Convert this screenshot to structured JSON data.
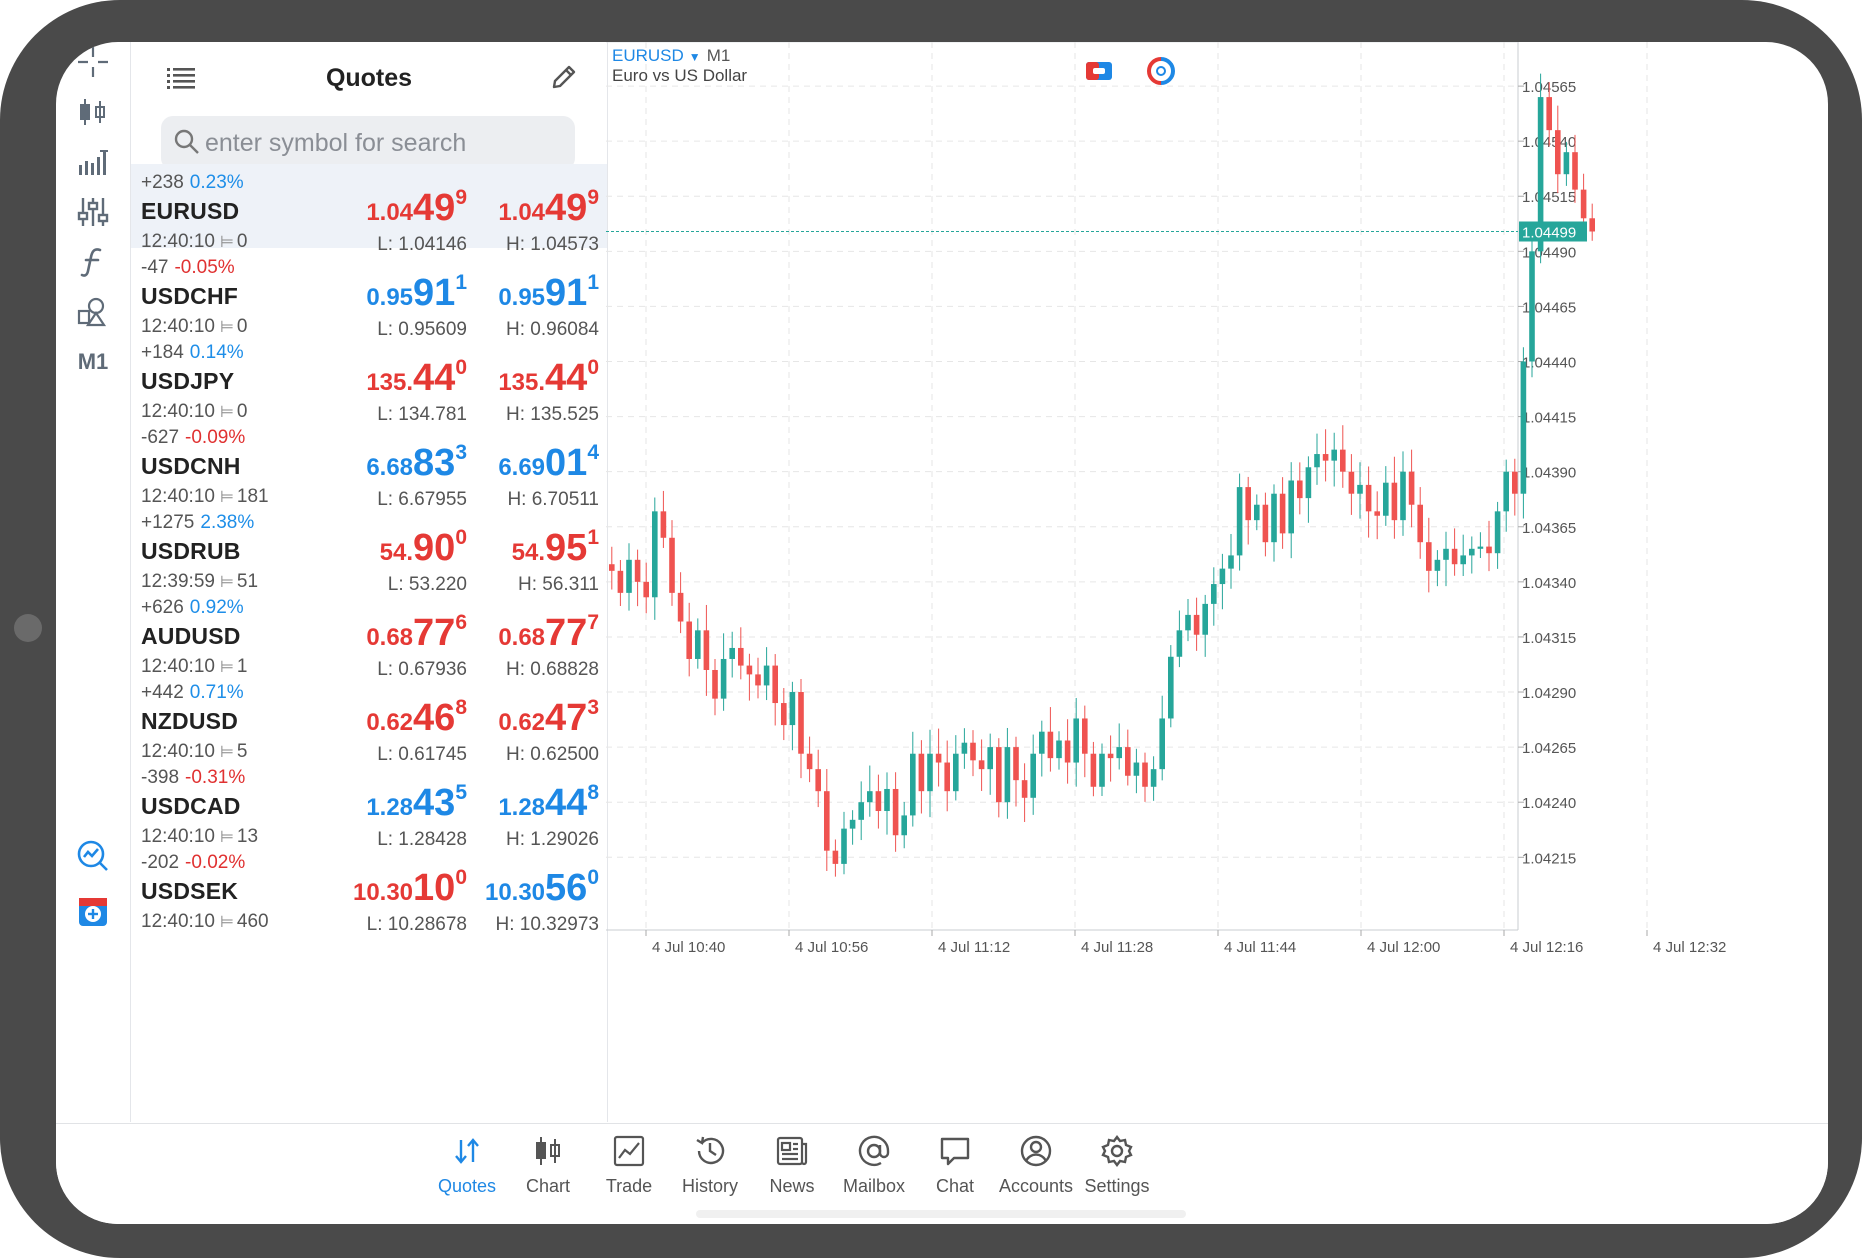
{
  "quotes_panel": {
    "title": "Quotes",
    "search_placeholder": "enter symbol for search",
    "rows": [
      {
        "symbol": "EURUSD",
        "change": "+238",
        "pct": "0.23%",
        "dir": "pos",
        "time": "12:40:10",
        "spread": "0",
        "bid": {
          "a": "1.04",
          "b": "49",
          "c": "9",
          "color": "red"
        },
        "ask": {
          "a": "1.04",
          "b": "49",
          "c": "9",
          "color": "red"
        },
        "low": "L: 1.04146",
        "high": "H: 1.04573"
      },
      {
        "symbol": "USDCHF",
        "change": "-47",
        "pct": "-0.05%",
        "dir": "neg",
        "time": "12:40:10",
        "spread": "0",
        "bid": {
          "a": "0.95",
          "b": "91",
          "c": "1",
          "color": "blue"
        },
        "ask": {
          "a": "0.95",
          "b": "91",
          "c": "1",
          "color": "blue"
        },
        "low": "L: 0.95609",
        "high": "H: 0.96084"
      },
      {
        "symbol": "USDJPY",
        "change": "+184",
        "pct": "0.14%",
        "dir": "pos",
        "time": "12:40:10",
        "spread": "0",
        "bid": {
          "a": "135.",
          "b": "44",
          "c": "0",
          "color": "red"
        },
        "ask": {
          "a": "135.",
          "b": "44",
          "c": "0",
          "color": "red"
        },
        "low": "L: 134.781",
        "high": "H: 135.525"
      },
      {
        "symbol": "USDCNH",
        "change": "-627",
        "pct": "-0.09%",
        "dir": "neg",
        "time": "12:40:10",
        "spread": "181",
        "bid": {
          "a": "6.68",
          "b": "83",
          "c": "3",
          "color": "blue"
        },
        "ask": {
          "a": "6.69",
          "b": "01",
          "c": "4",
          "color": "blue"
        },
        "low": "L: 6.67955",
        "high": "H: 6.70511"
      },
      {
        "symbol": "USDRUB",
        "change": "+1275",
        "pct": "2.38%",
        "dir": "pos",
        "time": "12:39:59",
        "spread": "51",
        "bid": {
          "a": "54.",
          "b": "90",
          "c": "0",
          "color": "red"
        },
        "ask": {
          "a": "54.",
          "b": "95",
          "c": "1",
          "color": "red"
        },
        "low": "L: 53.220",
        "high": "H: 56.311"
      },
      {
        "symbol": "AUDUSD",
        "change": "+626",
        "pct": "0.92%",
        "dir": "pos",
        "time": "12:40:10",
        "spread": "1",
        "bid": {
          "a": "0.68",
          "b": "77",
          "c": "6",
          "color": "red"
        },
        "ask": {
          "a": "0.68",
          "b": "77",
          "c": "7",
          "color": "red"
        },
        "low": "L: 0.67936",
        "high": "H: 0.68828"
      },
      {
        "symbol": "NZDUSD",
        "change": "+442",
        "pct": "0.71%",
        "dir": "pos",
        "time": "12:40:10",
        "spread": "5",
        "bid": {
          "a": "0.62",
          "b": "46",
          "c": "8",
          "color": "red"
        },
        "ask": {
          "a": "0.62",
          "b": "47",
          "c": "3",
          "color": "red"
        },
        "low": "L: 0.61745",
        "high": "H: 0.62500"
      },
      {
        "symbol": "USDCAD",
        "change": "-398",
        "pct": "-0.31%",
        "dir": "neg",
        "time": "12:40:10",
        "spread": "13",
        "bid": {
          "a": "1.28",
          "b": "43",
          "c": "5",
          "color": "blue"
        },
        "ask": {
          "a": "1.28",
          "b": "44",
          "c": "8",
          "color": "blue"
        },
        "low": "L: 1.28428",
        "high": "H: 1.29026"
      },
      {
        "symbol": "USDSEK",
        "change": "-202",
        "pct": "-0.02%",
        "dir": "neg",
        "time": "12:40:10",
        "spread": "460",
        "bid": {
          "a": "10.30",
          "b": "10",
          "c": "0",
          "color": "red"
        },
        "ask": {
          "a": "10.30",
          "b": "56",
          "c": "0",
          "color": "blue"
        },
        "low": "L: 10.28678",
        "high": "H: 10.32973"
      }
    ]
  },
  "toolbar": {
    "timeframe_label": "M1"
  },
  "chart": {
    "symbol": "EURUSD",
    "timeframe": "M1",
    "description": "Euro vs US Dollar",
    "colors": {
      "up": "#26a69a",
      "down": "#ef5350",
      "grid": "#e6e6e6",
      "current": "#26a69a"
    }
  },
  "chart_data": {
    "type": "candlestick",
    "current_price": "1.04499",
    "y_ticks": [
      "1.04565",
      "1.04540",
      "1.04515",
      "1.04490",
      "1.04465",
      "1.04440",
      "1.04415",
      "1.04390",
      "1.04365",
      "1.04340",
      "1.04315",
      "1.04290",
      "1.04265",
      "1.04240",
      "1.04215"
    ],
    "x_ticks": [
      "4 Jul 10:40",
      "4 Jul 10:56",
      "4 Jul 11:12",
      "4 Jul 11:28",
      "4 Jul 11:44",
      "4 Jul 12:00",
      "4 Jul 12:16",
      "4 Jul 12:32"
    ],
    "ylim": [
      1.04182,
      1.04585
    ],
    "close_path": [
      1.04345,
      1.04335,
      1.0435,
      1.0434,
      1.04333,
      1.04372,
      1.0436,
      1.04335,
      1.04322,
      1.04305,
      1.04318,
      1.043,
      1.04287,
      1.04305,
      1.0431,
      1.04302,
      1.04298,
      1.04293,
      1.04302,
      1.04285,
      1.04275,
      1.0429,
      1.04262,
      1.04255,
      1.04245,
      1.04218,
      1.04212,
      1.04228,
      1.04232,
      1.0424,
      1.04245,
      1.04236,
      1.04246,
      1.04225,
      1.04234,
      1.04262,
      1.04245,
      1.04262,
      1.04258,
      1.04245,
      1.04262,
      1.04267,
      1.04259,
      1.04255,
      1.04265,
      1.0424,
      1.04265,
      1.0425,
      1.04242,
      1.04262,
      1.04272,
      1.0426,
      1.04268,
      1.04258,
      1.04278,
      1.04262,
      1.04247,
      1.04262,
      1.0426,
      1.04265,
      1.04252,
      1.04258,
      1.04247,
      1.04255,
      1.04278,
      1.04306,
      1.04318,
      1.04325,
      1.04316,
      1.0433,
      1.04339,
      1.04346,
      1.04352,
      1.04383,
      1.04368,
      1.04375,
      1.04358,
      1.0438,
      1.04362,
      1.04386,
      1.04378,
      1.04392,
      1.04398,
      1.04395,
      1.044,
      1.0439,
      1.0438,
      1.04384,
      1.04372,
      1.0437,
      1.04385,
      1.04368,
      1.0439,
      1.04375,
      1.04358,
      1.04345,
      1.0435,
      1.04355,
      1.04348,
      1.04352,
      1.04355,
      1.04356,
      1.04353,
      1.04372,
      1.0439,
      1.0438,
      1.0444,
      1.0449,
      1.0456,
      1.04545,
      1.04525,
      1.04535,
      1.04518,
      1.04505,
      1.04499
    ]
  },
  "nav": [
    {
      "label": "Quotes",
      "icon": "quotes-icon",
      "active": true
    },
    {
      "label": "Chart",
      "icon": "chart-icon",
      "active": false
    },
    {
      "label": "Trade",
      "icon": "trade-icon",
      "active": false
    },
    {
      "label": "History",
      "icon": "history-icon",
      "active": false
    },
    {
      "label": "News",
      "icon": "news-icon",
      "active": false
    },
    {
      "label": "Mailbox",
      "icon": "mailbox-icon",
      "active": false
    },
    {
      "label": "Chat",
      "icon": "chat-icon",
      "active": false
    },
    {
      "label": "Accounts",
      "icon": "accounts-icon",
      "active": false
    },
    {
      "label": "Settings",
      "icon": "settings-icon",
      "active": false
    }
  ]
}
